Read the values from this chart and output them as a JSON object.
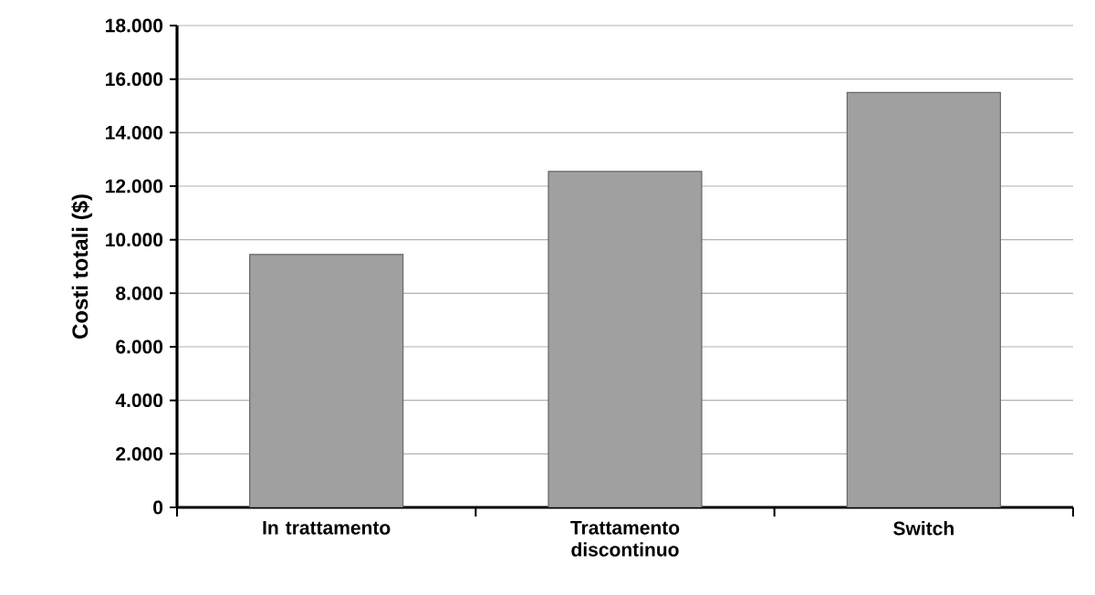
{
  "chart_data": {
    "type": "bar",
    "ylabel": "Costi totali ($)",
    "categories": [
      "In trattamento",
      "Trattamento discontinuo",
      "Switch"
    ],
    "values": [
      9450,
      12550,
      15500
    ],
    "color": "#a0a0a0",
    "ylim": [
      0,
      18000
    ],
    "yticks": [
      {
        "value": 0,
        "label": "0"
      },
      {
        "value": 2000,
        "label": "2.000"
      },
      {
        "value": 4000,
        "label": "4.000"
      },
      {
        "value": 6000,
        "label": "6.000"
      },
      {
        "value": 8000,
        "label": "8.000"
      },
      {
        "value": 10000,
        "label": "10.000"
      },
      {
        "value": 12000,
        "label": "12.000"
      },
      {
        "value": 14000,
        "label": "14.000"
      },
      {
        "value": 16000,
        "label": "16.000"
      },
      {
        "value": 18000,
        "label": "18.000"
      }
    ],
    "grid": "y"
  }
}
